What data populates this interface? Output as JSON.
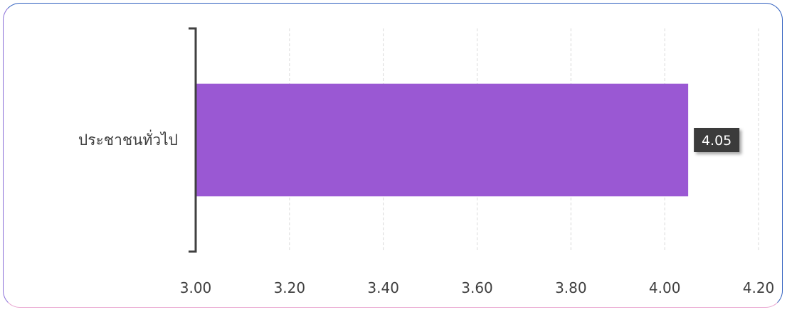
{
  "chart_data": {
    "type": "bar",
    "orientation": "horizontal",
    "categories": [
      "ประชาชนทั่วไป"
    ],
    "values": [
      4.05
    ],
    "data_labels": [
      "4.05"
    ],
    "x_ticks": [
      "3.00",
      "3.20",
      "3.40",
      "3.60",
      "3.80",
      "4.00",
      "4.20"
    ],
    "xlim": [
      3.0,
      4.2
    ],
    "grid": true,
    "title": "",
    "xlabel": "",
    "ylabel": "",
    "colors": {
      "bar": "#9a58d3",
      "label_bg": "#3a3a3a",
      "axis": "#404040",
      "grid": "#d9d9d9"
    }
  }
}
